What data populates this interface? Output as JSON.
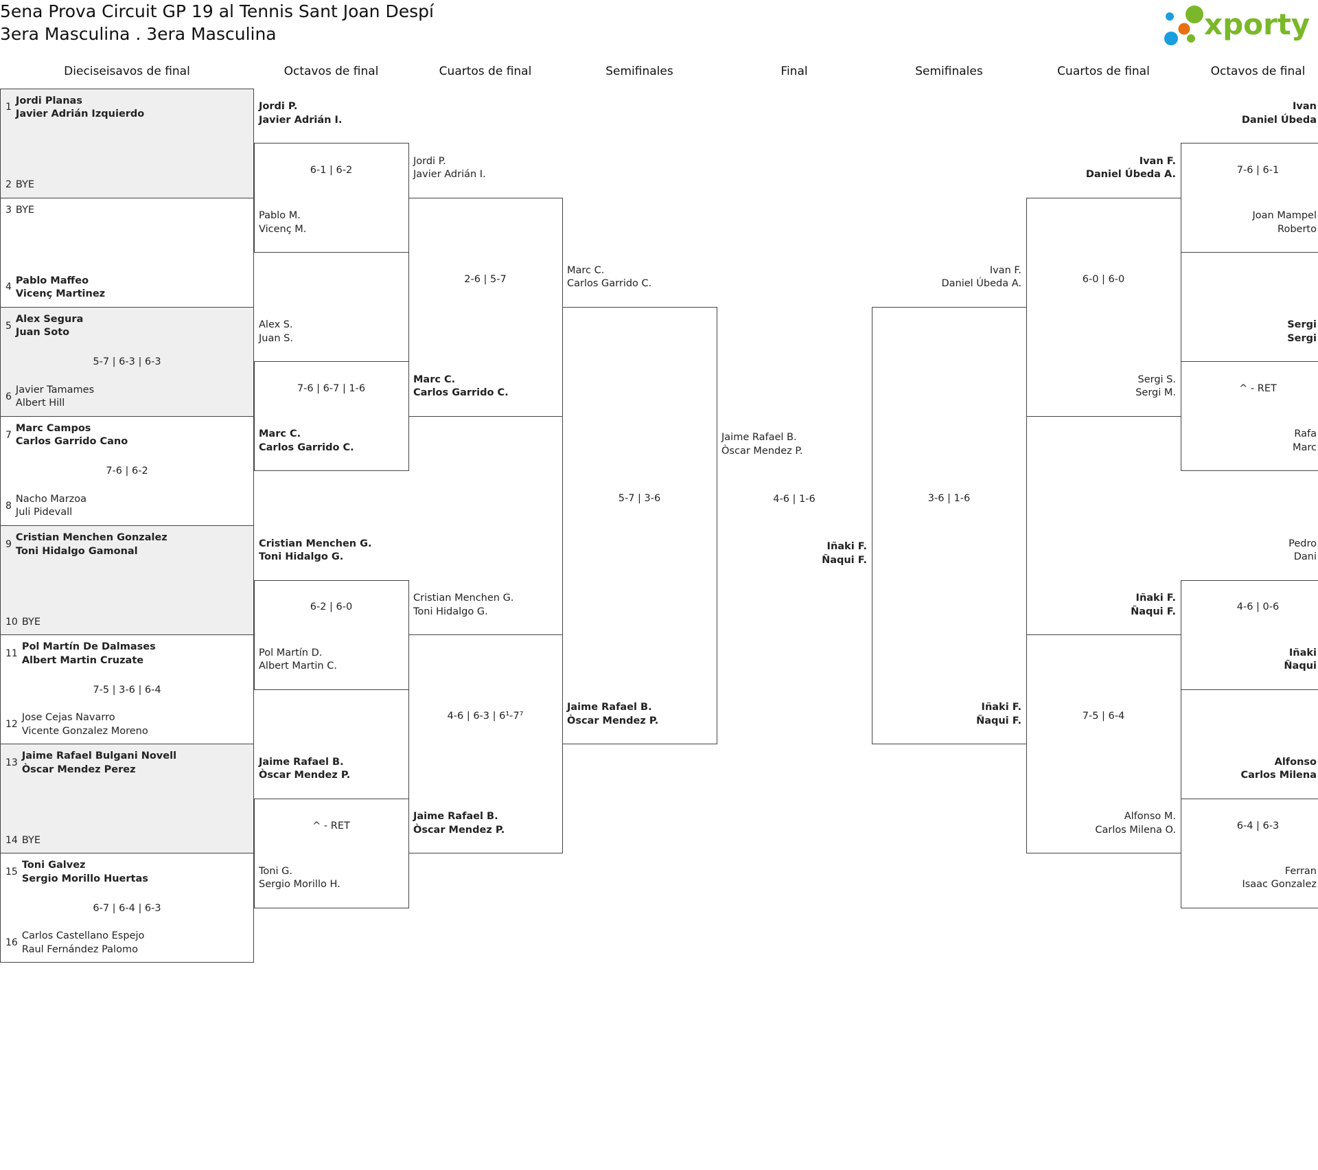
{
  "header": {
    "title": "5ena Prova Circuit GP 19 al Tennis Sant Joan Despí",
    "subtitle": "3era Masculina . 3era Masculina",
    "logo_text": "xporty"
  },
  "colors": {
    "logo_green": "#7ab829",
    "logo_blue": "#1a9ee0",
    "logo_orange": "#e8700f",
    "row_gray": "#efefef",
    "border": "#444444"
  },
  "round_headers": [
    "Dieciseisavos de final",
    "Octavos de final",
    "Cuartos de final",
    "Semifinales",
    "Final",
    "Semifinales",
    "Cuartos de final",
    "Octavos de final"
  ],
  "r32": [
    {
      "top": {
        "seed": "1",
        "names": [
          "Jordi Planas",
          "Javier Adrián Izquierdo"
        ],
        "winner": true
      },
      "bottom": {
        "seed": "2",
        "names": [
          "BYE"
        ],
        "winner": false
      },
      "score": ""
    },
    {
      "top": {
        "seed": "3",
        "names": [
          "BYE"
        ],
        "winner": false
      },
      "bottom": {
        "seed": "4",
        "names": [
          "Pablo Maffeo",
          "Vicenç Martinez"
        ],
        "winner": true
      },
      "score": ""
    },
    {
      "top": {
        "seed": "5",
        "names": [
          "Alex Segura",
          "Juan Soto"
        ],
        "winner": true
      },
      "bottom": {
        "seed": "6",
        "names": [
          "Javier Tamames",
          "Albert Hill"
        ],
        "winner": false
      },
      "score": "5-7 | 6-3 | 6-3"
    },
    {
      "top": {
        "seed": "7",
        "names": [
          "Marc Campos",
          "Carlos Garrido Cano"
        ],
        "winner": true
      },
      "bottom": {
        "seed": "8",
        "names": [
          "Nacho Marzoa",
          "Juli Pidevall"
        ],
        "winner": false
      },
      "score": "7-6 | 6-2"
    },
    {
      "top": {
        "seed": "9",
        "names": [
          "Cristian Menchen Gonzalez",
          "Toni Hidalgo Gamonal"
        ],
        "winner": true
      },
      "bottom": {
        "seed": "10",
        "names": [
          "BYE"
        ],
        "winner": false
      },
      "score": ""
    },
    {
      "top": {
        "seed": "11",
        "names": [
          "Pol Martín De Dalmases",
          "Albert Martin Cruzate"
        ],
        "winner": true
      },
      "bottom": {
        "seed": "12",
        "names": [
          "Jose Cejas Navarro",
          "Vicente Gonzalez Moreno"
        ],
        "winner": false
      },
      "score": "7-5 | 3-6 | 6-4"
    },
    {
      "top": {
        "seed": "13",
        "names": [
          "Jaime Rafael Bulgani Novell",
          "Òscar Mendez Perez"
        ],
        "winner": true
      },
      "bottom": {
        "seed": "14",
        "names": [
          "BYE"
        ],
        "winner": false
      },
      "score": ""
    },
    {
      "top": {
        "seed": "15",
        "names": [
          "Toni Galvez",
          "Sergio Morillo Huertas"
        ],
        "winner": true
      },
      "bottom": {
        "seed": "16",
        "names": [
          "Carlos Castellano Espejo",
          "Raul Fernández Palomo"
        ],
        "winner": false
      },
      "score": "6-7 | 6-4 | 6-3"
    }
  ],
  "left": {
    "r16": [
      {
        "a": {
          "names": [
            "Jordi P.",
            "Javier Adrián I."
          ],
          "winner": true
        },
        "b": {
          "names": [
            "Pablo M.",
            "Vicenç M."
          ],
          "winner": false
        },
        "score": "6-1 | 6-2"
      },
      {
        "a": {
          "names": [
            "Alex S.",
            "Juan S."
          ],
          "winner": false
        },
        "b": {
          "names": [
            "Marc C.",
            "Carlos Garrido C."
          ],
          "winner": true
        },
        "score": "7-6 | 6-7 | 1-6"
      },
      {
        "a": {
          "names": [
            "Cristian Menchen G.",
            "Toni Hidalgo G."
          ],
          "winner": true
        },
        "b": {
          "names": [
            "Pol Martín D.",
            "Albert Martin C."
          ],
          "winner": false
        },
        "score": "6-2 | 6-0"
      },
      {
        "a": {
          "names": [
            "Jaime Rafael B.",
            "Òscar Mendez P."
          ],
          "winner": true
        },
        "b": {
          "names": [
            "Toni G.",
            "Sergio Morillo H."
          ],
          "winner": false
        },
        "score": "^ - RET"
      }
    ],
    "qf": [
      {
        "a": {
          "names": [
            "Jordi P.",
            "Javier Adrián I."
          ],
          "winner": false
        },
        "b": {
          "names": [
            "Marc C.",
            "Carlos Garrido C."
          ],
          "winner": true
        },
        "score": "2-6 | 5-7"
      },
      {
        "a": {
          "names": [
            "Cristian Menchen G.",
            "Toni Hidalgo G."
          ],
          "winner": false
        },
        "b": {
          "names": [
            "Jaime Rafael B.",
            "Òscar Mendez P."
          ],
          "winner": true
        },
        "score": "4-6 | 6-3 | 6¹-7⁷"
      }
    ],
    "sf": [
      {
        "a": {
          "names": [
            "Marc C.",
            "Carlos Garrido C."
          ],
          "winner": false
        },
        "b": {
          "names": [
            "Jaime Rafael B.",
            "Òscar Mendez P."
          ],
          "winner": true
        },
        "score": "5-7 | 3-6"
      }
    ]
  },
  "final": {
    "a": {
      "names": [
        "Jaime Rafael B.",
        "Òscar Mendez P."
      ],
      "winner": false
    },
    "b": {
      "names": [
        "Iñaki F.",
        "Ñaqui F."
      ],
      "winner": true
    },
    "score": "4-6 | 1-6"
  },
  "right": {
    "sf": [
      {
        "a": {
          "names": [
            "Ivan F.",
            "Daniel Úbeda A."
          ],
          "winner": false
        },
        "b": {
          "names": [
            "Iñaki F.",
            "Ñaqui F."
          ],
          "winner": true
        },
        "score": "3-6 | 1-6"
      }
    ],
    "qf": [
      {
        "a": {
          "names": [
            "Ivan F.",
            "Daniel Úbeda A."
          ],
          "winner": true
        },
        "b": {
          "names": [
            "Sergi S.",
            "Sergi M."
          ],
          "winner": false
        },
        "score": "6-0 | 6-0"
      },
      {
        "a": {
          "names": [
            "Iñaki F.",
            "Ñaqui F."
          ],
          "winner": true
        },
        "b": {
          "names": [
            "Alfonso M.",
            "Carlos Milena O."
          ],
          "winner": false
        },
        "score": "7-5 | 6-4"
      }
    ],
    "r16": [
      {
        "a": {
          "names": [
            "Ivan",
            "Daniel Úbeda"
          ],
          "winner": true
        },
        "b": {
          "names": [
            "Joan Mampel",
            "Roberto"
          ],
          "winner": false
        },
        "score": "7-6 | 6-1"
      },
      {
        "a": {
          "names": [
            "Sergi",
            "Sergi"
          ],
          "winner": true
        },
        "b": {
          "names": [
            "Rafa",
            "Marc"
          ],
          "winner": false
        },
        "score": "^ - RET"
      },
      {
        "a": {
          "names": [
            "Pedro",
            "Dani"
          ],
          "winner": false
        },
        "b": {
          "names": [
            "Iñaki",
            "Ñaqui"
          ],
          "winner": true
        },
        "score": "4-6 | 0-6"
      },
      {
        "a": {
          "names": [
            "Alfonso",
            "Carlos Milena"
          ],
          "winner": true
        },
        "b": {
          "names": [
            "Ferran",
            "Isaac Gonzalez"
          ],
          "winner": false
        },
        "score": "6-4 | 6-3"
      }
    ]
  }
}
